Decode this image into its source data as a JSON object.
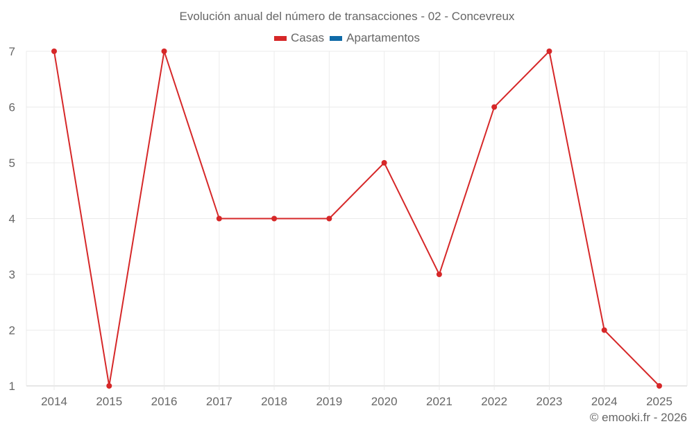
{
  "chart_data": {
    "type": "line",
    "title": "Evolución anual del número de transacciones - 02 - Concevreux",
    "xlabel": "",
    "ylabel": "",
    "categories": [
      "2014",
      "2015",
      "2016",
      "2017",
      "2018",
      "2019",
      "2020",
      "2021",
      "2022",
      "2023",
      "2024",
      "2025"
    ],
    "series": [
      {
        "name": "Casas",
        "color": "#d62728",
        "values": [
          7,
          1,
          7,
          4,
          4,
          4,
          5,
          3,
          6,
          7,
          2,
          1
        ]
      },
      {
        "name": "Apartamentos",
        "color": "#0f6aa8",
        "values": []
      }
    ],
    "ylim": [
      1,
      7
    ],
    "yticks": [
      1,
      2,
      3,
      4,
      5,
      6,
      7
    ],
    "grid": true,
    "legend_position": "top"
  },
  "title": "Evolución anual del número de transacciones - 02 - Concevreux",
  "legend": [
    {
      "label": "Casas",
      "color": "#d62728"
    },
    {
      "label": "Apartamentos",
      "color": "#0f6aa8"
    }
  ],
  "footer": "© emooki.fr - 2026"
}
